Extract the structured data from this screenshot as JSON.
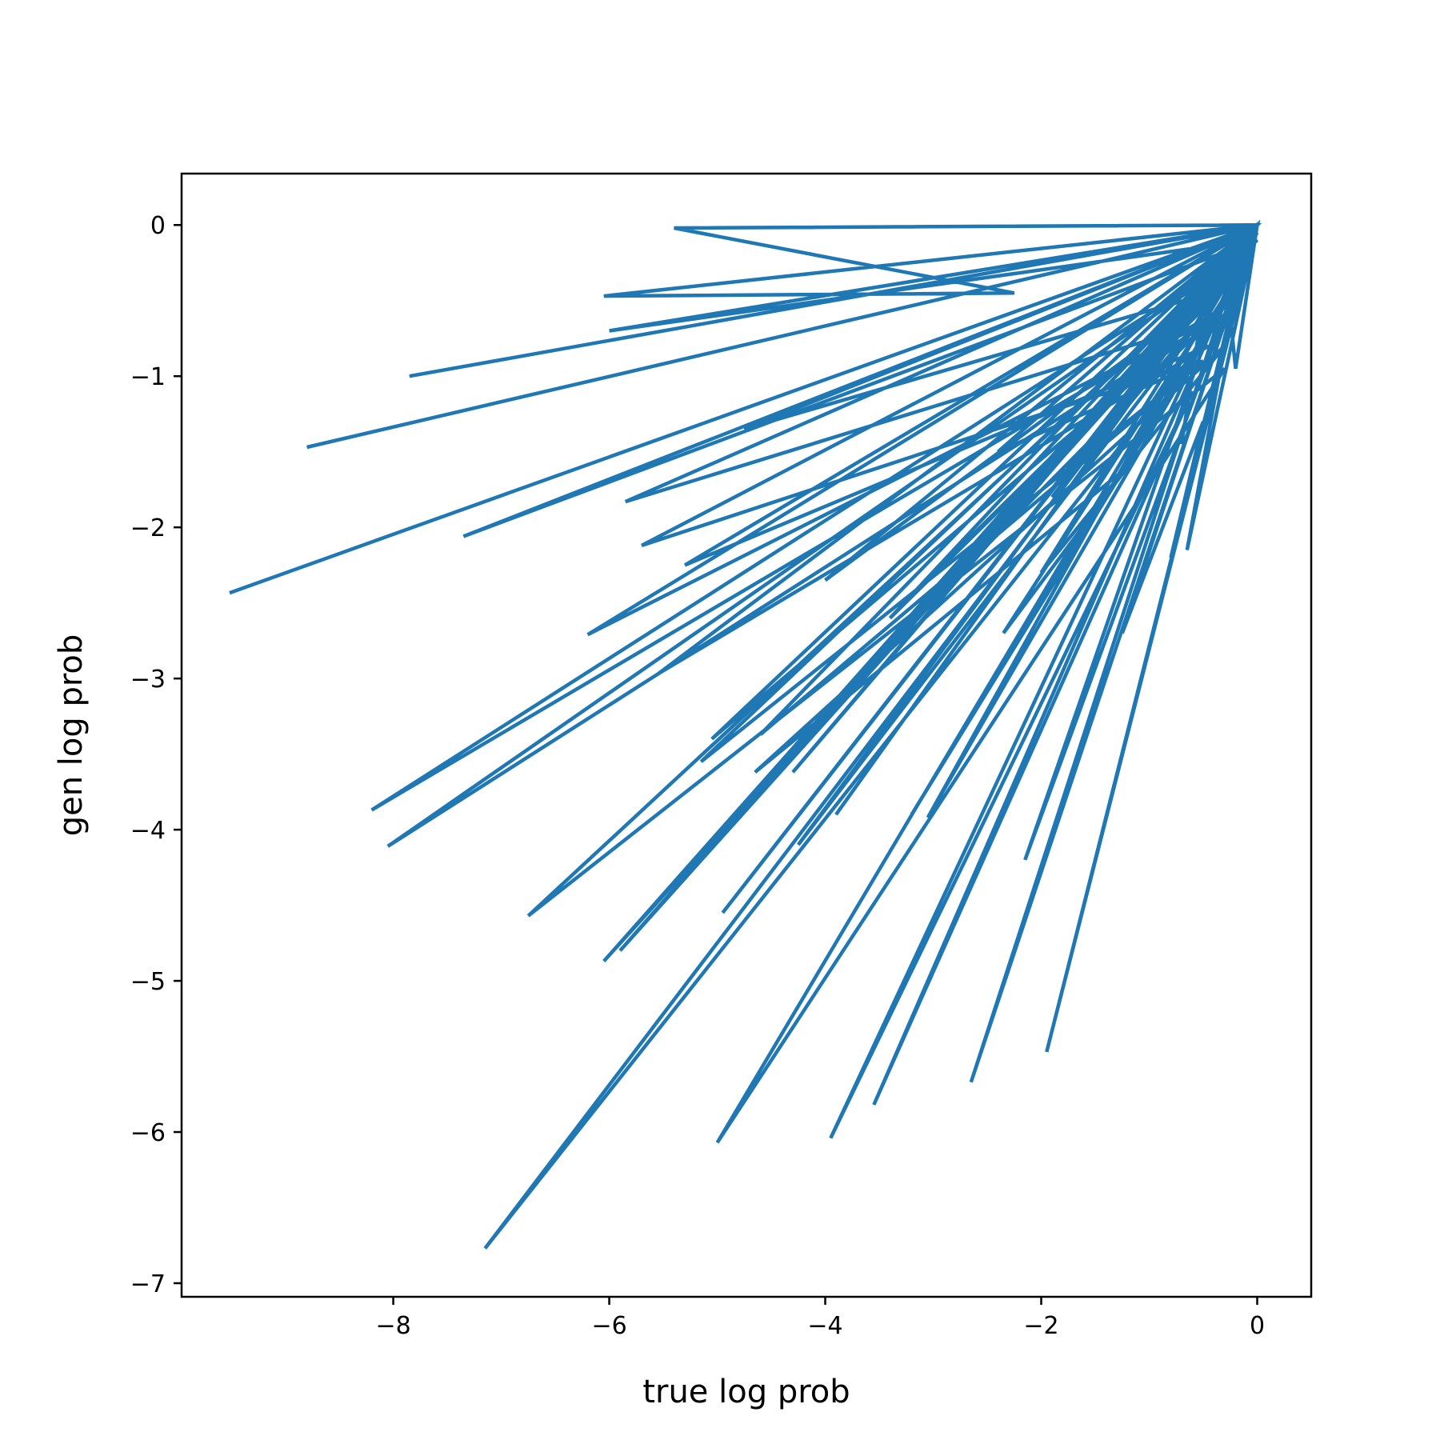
{
  "chart_data": {
    "type": "line",
    "title": "",
    "xlabel": "true log prob",
    "ylabel": "gen log prob",
    "xlim": [
      -9.96,
      0.5
    ],
    "ylim": [
      -7.09,
      0.34
    ],
    "xticks": [
      -8,
      -6,
      -4,
      -2,
      0
    ],
    "yticks": [
      0,
      -1,
      -2,
      -3,
      -4,
      -5,
      -6,
      -7
    ],
    "xtick_labels": [
      "−8",
      "−6",
      "−4",
      "−2",
      "0"
    ],
    "ytick_labels": [
      "0",
      "−1",
      "−2",
      "−3",
      "−4",
      "−5",
      "−6",
      "−7"
    ],
    "grid": false,
    "legend": "none",
    "line_color": "#1f77b4",
    "series": [
      {
        "x": [
          -9.5,
          0,
          -8.8,
          0,
          -7.85,
          0,
          -7.35,
          0,
          -6.75,
          -0.3,
          -5.0,
          0,
          -7.15,
          -0.2,
          -8.2,
          -0.15,
          -8.05,
          -0.35,
          -6.2,
          0,
          -6.05,
          -0.25,
          -5.9,
          0,
          -5.55,
          -0.45,
          -5.3,
          0,
          -6.0,
          -0.05,
          -5.15,
          -0.5,
          -4.6,
          0,
          -4.95,
          -0.2,
          -4.3,
          0,
          -3.95,
          -0.6,
          -3.55,
          0,
          -4.0,
          -0.1,
          -3.2,
          -0.3,
          -2.65,
          0,
          -3.9,
          0,
          -3.1,
          -0.4,
          -2.15,
          -0.05,
          -1.95,
          0,
          -5.05,
          -0.6,
          -4.25,
          0,
          -3.4,
          -0.35,
          -2.85,
          -0.15,
          -0.8,
          -0.5,
          -1.25,
          0,
          -6.05,
          -2.25,
          -5.4,
          0,
          -2.4,
          -0.5,
          -5.7,
          0,
          -4.75,
          -0.2,
          -3.05,
          0,
          -0.2,
          -0.25,
          -0.65,
          0,
          -1.9,
          -0.1,
          -0.55,
          -0.7,
          -0.45,
          0,
          -5.85,
          -0.5,
          -2.35,
          -1.2,
          -4.65,
          -0.3,
          -2.0,
          0
        ],
        "y": [
          -2.43,
          0,
          -1.47,
          0,
          -1.0,
          0,
          -2.06,
          -0.1,
          -4.57,
          -0.95,
          -6.07,
          -0.05,
          -6.77,
          -0.5,
          -3.87,
          -0.2,
          -4.11,
          -0.6,
          -2.71,
          0,
          -4.87,
          -0.3,
          -4.8,
          0,
          -2.97,
          -0.8,
          -2.25,
          0,
          -0.7,
          -0.1,
          -3.55,
          -0.9,
          -3.37,
          0,
          -4.55,
          -0.2,
          -3.62,
          0,
          -6.04,
          -1.1,
          -5.82,
          0,
          -2.35,
          -0.3,
          -3.9,
          -0.5,
          -5.67,
          0,
          -3.9,
          0,
          -2.55,
          -0.6,
          -4.2,
          -0.1,
          -5.47,
          0,
          -3.4,
          -0.7,
          -4.1,
          0,
          -2.6,
          -0.45,
          -2.2,
          -0.3,
          -2.2,
          -1.3,
          -2.7,
          0,
          -0.47,
          -0.45,
          -0.02,
          0,
          -1.5,
          -0.9,
          -2.12,
          0,
          -1.35,
          -0.4,
          -3.92,
          0,
          -0.95,
          -0.6,
          -2.15,
          0,
          -1.8,
          -0.25,
          -0.75,
          -1.45,
          -0.28,
          0,
          -1.83,
          -0.65,
          -2.7,
          -1.6,
          -3.62,
          -0.8,
          -2.3,
          0
        ]
      }
    ]
  }
}
